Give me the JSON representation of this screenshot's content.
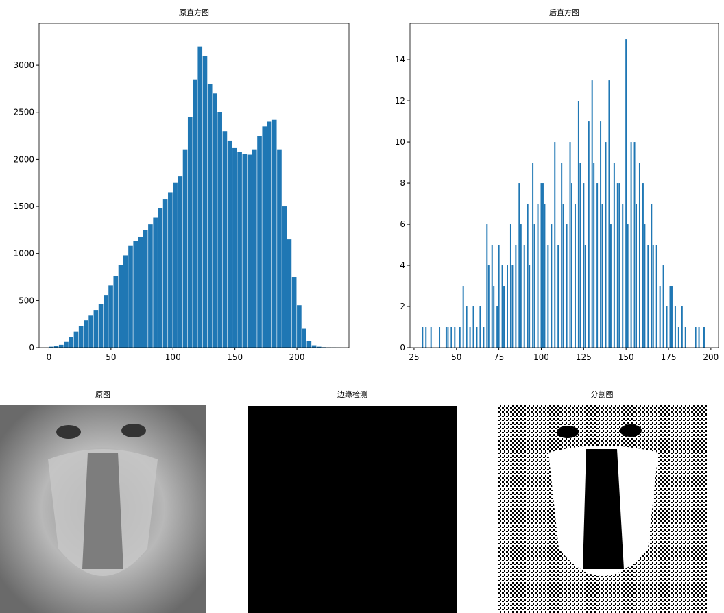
{
  "chart_data": [
    {
      "type": "histogram",
      "title": "原直方图",
      "color": "#1f77b4",
      "bins": [
        0,
        4,
        8,
        12,
        16,
        20,
        24,
        28,
        32,
        36,
        40,
        44,
        48,
        52,
        56,
        60,
        64,
        68,
        72,
        76,
        80,
        84,
        88,
        92,
        96,
        100,
        104,
        108,
        112,
        116,
        120,
        124,
        128,
        132,
        136,
        140,
        144,
        148,
        152,
        156,
        160,
        164,
        168,
        172,
        176,
        180,
        184,
        188,
        192,
        196,
        200,
        204,
        208,
        212,
        216,
        220,
        224,
        228,
        232,
        236
      ],
      "values": [
        10,
        15,
        30,
        60,
        110,
        170,
        230,
        290,
        340,
        400,
        460,
        560,
        660,
        760,
        880,
        980,
        1080,
        1130,
        1180,
        1250,
        1310,
        1380,
        1480,
        1580,
        1650,
        1750,
        1820,
        2100,
        2450,
        2850,
        3200,
        3100,
        2800,
        2700,
        2500,
        2300,
        2200,
        2120,
        2080,
        2060,
        2050,
        2100,
        2250,
        2350,
        2400,
        2420,
        2100,
        1500,
        1150,
        750,
        450,
        200,
        70,
        25,
        10,
        5,
        3,
        2,
        1
      ],
      "xlim": [
        -8,
        242
      ],
      "xticks": [
        0,
        50,
        100,
        150,
        200
      ],
      "ylim": [
        0,
        3445
      ],
      "yticks": [
        0,
        500,
        1000,
        1500,
        2000,
        2500,
        3000
      ]
    },
    {
      "type": "bar",
      "title": "后直方图",
      "color": "#1f77b4",
      "x": [
        30,
        32,
        35,
        40,
        44,
        45,
        47,
        49,
        52,
        54,
        56,
        58,
        60,
        62,
        64,
        66,
        68,
        69,
        71,
        72,
        74,
        75,
        77,
        78,
        80,
        82,
        83,
        85,
        87,
        88,
        90,
        92,
        93,
        95,
        96,
        98,
        100,
        101,
        102,
        104,
        106,
        108,
        110,
        112,
        113,
        115,
        117,
        118,
        120,
        122,
        123,
        125,
        126,
        128,
        130,
        131,
        133,
        135,
        136,
        138,
        140,
        141,
        143,
        145,
        146,
        148,
        150,
        151,
        153,
        155,
        156,
        158,
        160,
        161,
        163,
        165,
        166,
        168,
        170,
        172,
        174,
        176,
        177,
        179,
        181,
        183,
        185,
        191,
        193,
        196
      ],
      "values": [
        1,
        1,
        1,
        1,
        1,
        1,
        1,
        1,
        1,
        3,
        2,
        1,
        2,
        1,
        2,
        1,
        6,
        4,
        5,
        3,
        2,
        5,
        4,
        3,
        4,
        6,
        4,
        5,
        8,
        6,
        5,
        7,
        4,
        9,
        6,
        7,
        8,
        8,
        7,
        5,
        6,
        10,
        5,
        9,
        7,
        6,
        10,
        8,
        7,
        12,
        9,
        8,
        5,
        11,
        13,
        9,
        8,
        11,
        7,
        10,
        13,
        6,
        9,
        8,
        8,
        7,
        15,
        6,
        10,
        10,
        7,
        9,
        8,
        6,
        5,
        7,
        5,
        5,
        3,
        4,
        2,
        3,
        3,
        2,
        1,
        2,
        1,
        1,
        1,
        1
      ],
      "xlim": [
        22.6,
        204.5
      ],
      "xticks": [
        25,
        50,
        75,
        100,
        125,
        150,
        175,
        200
      ],
      "ylim": [
        0,
        15.77
      ],
      "yticks": [
        0,
        2,
        4,
        6,
        8,
        10,
        12,
        14
      ]
    }
  ],
  "images": [
    {
      "title": "原图"
    },
    {
      "title": "边缘检测"
    },
    {
      "title": "分割图"
    }
  ]
}
